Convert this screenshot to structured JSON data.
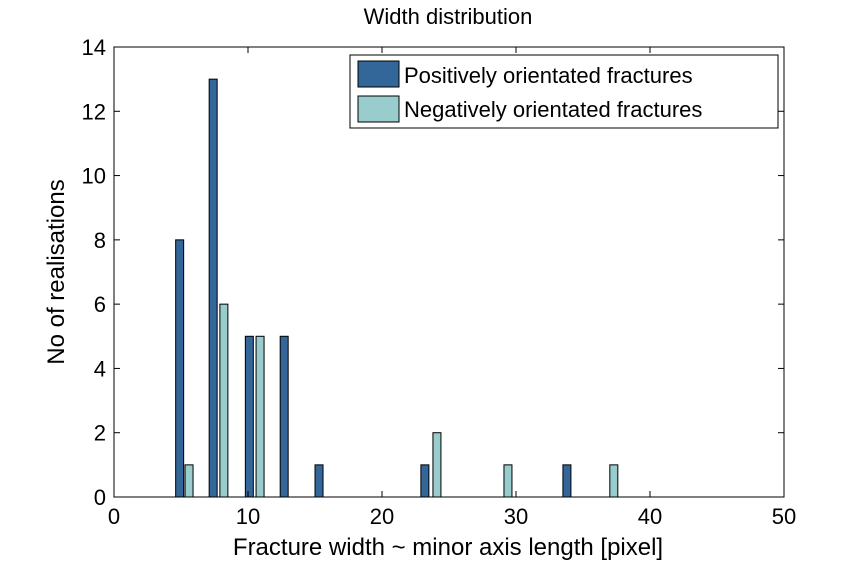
{
  "chart_data": {
    "type": "bar",
    "title": "Width distribution",
    "xlabel": "Fracture width ~ minor axis length [pixel]",
    "ylabel": "No of realisations",
    "xlim": [
      0,
      50
    ],
    "ylim": [
      0,
      14
    ],
    "xticks": [
      0,
      10,
      20,
      30,
      40,
      50
    ],
    "yticks": [
      0,
      2,
      4,
      6,
      8,
      10,
      12,
      14
    ],
    "grid": false,
    "legend_position": "top-right",
    "series": [
      {
        "name": "Positively orientated fractures",
        "color": "#336699",
        "points": [
          {
            "x": 4.9,
            "y": 8
          },
          {
            "x": 7.4,
            "y": 13
          },
          {
            "x": 10.1,
            "y": 5
          },
          {
            "x": 12.7,
            "y": 5
          },
          {
            "x": 15.3,
            "y": 1
          },
          {
            "x": 23.2,
            "y": 1
          },
          {
            "x": 33.8,
            "y": 1
          }
        ]
      },
      {
        "name": "Negatively orientated fractures",
        "color": "#99cccc",
        "points": [
          {
            "x": 5.6,
            "y": 1
          },
          {
            "x": 8.2,
            "y": 6
          },
          {
            "x": 10.9,
            "y": 5
          },
          {
            "x": 24.1,
            "y": 2
          },
          {
            "x": 29.4,
            "y": 1
          },
          {
            "x": 37.3,
            "y": 1
          }
        ]
      }
    ]
  }
}
